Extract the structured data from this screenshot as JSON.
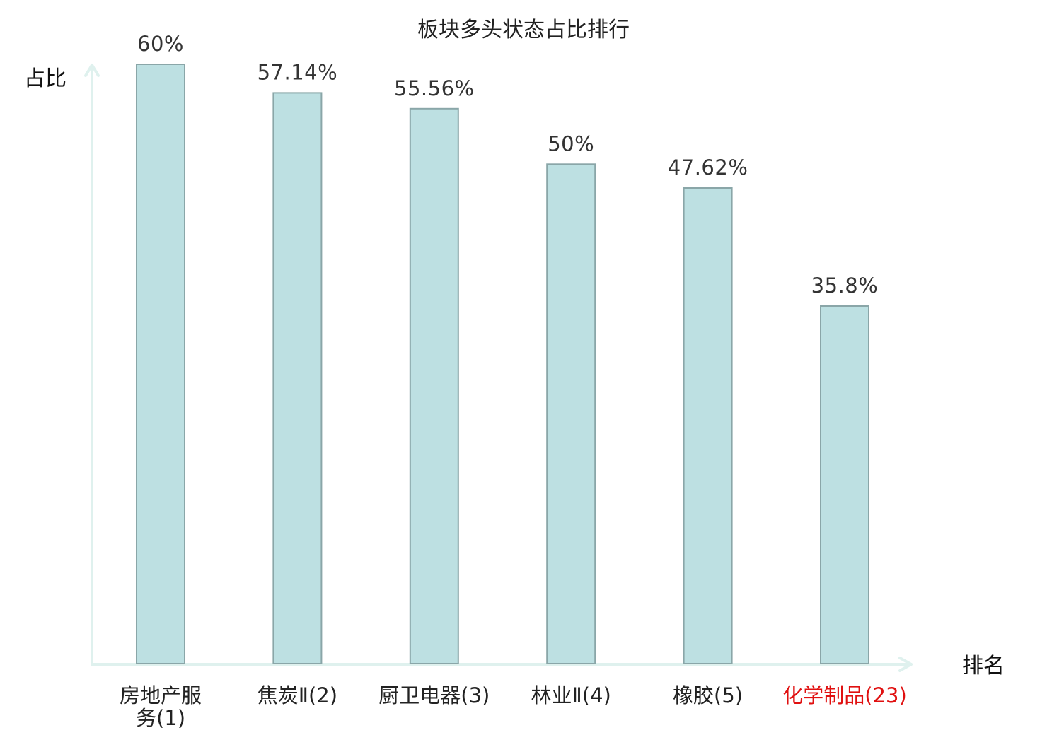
{
  "chart_data": {
    "type": "bar",
    "title": "板块多头状态占比排行",
    "ylabel": "占比",
    "xlabel": "排名",
    "categories": [
      [
        "房地产服",
        "务(1)"
      ],
      [
        "焦炭Ⅱ(2)"
      ],
      [
        "厨卫电器(3)"
      ],
      [
        "林业Ⅱ(4)"
      ],
      [
        "橡胶(5)"
      ],
      [
        "化学制品(23)"
      ]
    ],
    "values": [
      60,
      57.14,
      55.56,
      50,
      47.62,
      35.8
    ],
    "value_labels": [
      "60%",
      "57.14%",
      "55.56%",
      "50%",
      "47.62%",
      "35.8%"
    ],
    "highlight_index": 5,
    "ylim": [
      0,
      60
    ],
    "grid": false
  },
  "colors": {
    "bar_fill": "#bde0e2",
    "bar_stroke": "#8aa6a8",
    "axis": "#dff1ee",
    "category_text": "#222222",
    "highlight_text": "#e01010"
  }
}
